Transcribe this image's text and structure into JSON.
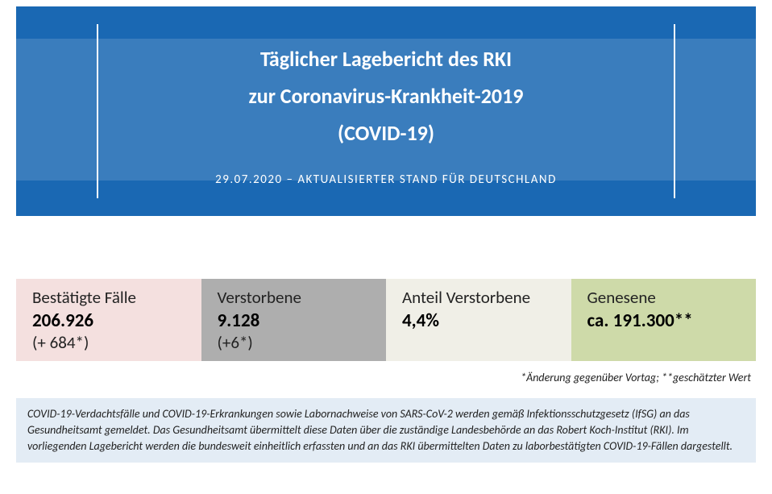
{
  "banner": {
    "title_line1": "Täglicher Lagebericht des RKI",
    "title_line2": "zur Coronavirus-Krankheit-2019",
    "title_line3": "(COVID-19)",
    "subtitle": "29.07.2020 – AKTUALISIERTER STAND FÜR DEUTSCHLAND",
    "bg_color": "#1a68b3",
    "text_color": "#ffffff"
  },
  "stats": [
    {
      "label": "Bestätigte Fälle",
      "value": "206.926",
      "delta": "(+ 684*)",
      "bg": "#f4e0df"
    },
    {
      "label": "Verstorbene",
      "value": "9.128",
      "delta": "(+6*)",
      "bg": "#aeaeae"
    },
    {
      "label": "Anteil Verstorbene",
      "value": "4,4%",
      "delta": "",
      "bg": "#f0efe7"
    },
    {
      "label": "Genesene",
      "value": "ca. 191.300**",
      "delta": "",
      "bg": "#cedaa9"
    }
  ],
  "footnote": "*Änderung gegenüber Vortag; **geschätzter Wert",
  "disclaimer": {
    "text": "COVID-19-Verdachtsfälle und COVID-19-Erkrankungen sowie Labornachweise von SARS-CoV-2 werden gemäß Infektionsschutzgesetz (IfSG) an das Gesundheitsamt gemeldet. Das Gesundheitsamt übermittelt diese Daten über die zuständige Landesbehörde an das Robert Koch-Institut (RKI). Im vorliegenden Lagebericht werden die bundesweit einheitlich erfassten und an das RKI übermittelten Daten zu laborbestätigten COVID-19-Fällen dargestellt.",
    "bg": "#e3ecf5"
  }
}
